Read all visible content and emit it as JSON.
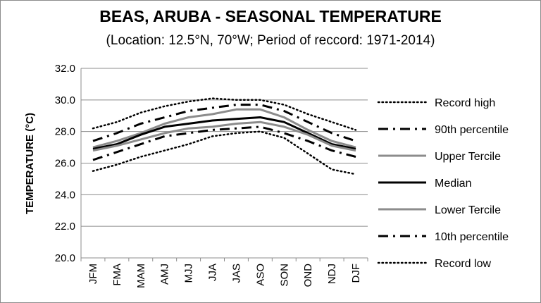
{
  "chart_data": {
    "type": "line",
    "title": "BEAS, ARUBA - SEASONAL TEMPERATURE",
    "subtitle": "(Location: 12.5°N, 70°W; Period of reccord: 1971-2014)",
    "ylabel": "TEMPERATURE (°C)",
    "xlabel": "",
    "ylim": [
      20,
      32
    ],
    "yticks": [
      "20.0",
      "22.0",
      "24.0",
      "26.0",
      "28.0",
      "30.0",
      "32.0"
    ],
    "categories": [
      "JFM",
      "FMA",
      "MAM",
      "AMJ",
      "MJJ",
      "JJA",
      "JAS",
      "ASO",
      "SON",
      "OND",
      "NDJ",
      "DJF"
    ],
    "grid": "horizontal",
    "legend_position": "right",
    "series": [
      {
        "name": "Record high",
        "style": "dotted",
        "color": "#000000",
        "values": [
          28.2,
          28.6,
          29.2,
          29.6,
          29.9,
          30.1,
          30.0,
          30.0,
          29.7,
          29.1,
          28.6,
          28.1
        ]
      },
      {
        "name": "90th percentile",
        "style": "dashdot",
        "color": "#000000",
        "values": [
          27.4,
          27.9,
          28.5,
          28.9,
          29.3,
          29.5,
          29.7,
          29.7,
          29.3,
          28.6,
          27.9,
          27.4
        ]
      },
      {
        "name": "Upper Tercile",
        "style": "solid",
        "color": "#8c8c8c",
        "values": [
          27.0,
          27.4,
          27.9,
          28.5,
          28.9,
          29.1,
          29.4,
          29.4,
          28.9,
          28.1,
          27.4,
          27.0
        ]
      },
      {
        "name": "Median",
        "style": "solid",
        "color": "#000000",
        "values": [
          26.9,
          27.2,
          27.8,
          28.3,
          28.5,
          28.7,
          28.8,
          28.9,
          28.6,
          27.9,
          27.2,
          26.9
        ]
      },
      {
        "name": "Lower Tercile",
        "style": "solid",
        "color": "#8c8c8c",
        "values": [
          26.8,
          27.1,
          27.5,
          27.9,
          28.2,
          28.3,
          28.5,
          28.6,
          28.3,
          27.8,
          27.1,
          26.8
        ]
      },
      {
        "name": "10th percentile",
        "style": "dashdot",
        "color": "#000000",
        "values": [
          26.2,
          26.7,
          27.2,
          27.7,
          27.9,
          28.1,
          28.2,
          28.3,
          27.9,
          27.4,
          26.8,
          26.4
        ]
      },
      {
        "name": "Record low",
        "style": "dotted",
        "color": "#000000",
        "values": [
          25.5,
          25.9,
          26.4,
          26.8,
          27.2,
          27.7,
          27.9,
          28.0,
          27.6,
          26.6,
          25.6,
          25.3
        ]
      }
    ]
  }
}
